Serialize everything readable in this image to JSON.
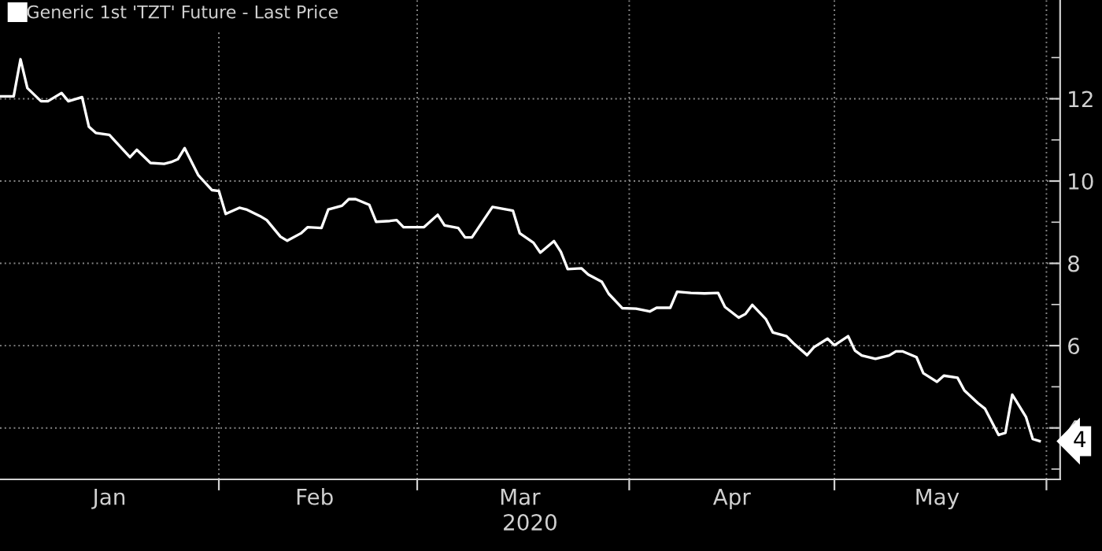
{
  "chart_data": {
    "type": "line",
    "xlabel": "2020",
    "x": [
      "2019-12-31",
      "2020-01-02",
      "2020-01-03",
      "2020-01-04",
      "2020-01-06",
      "2020-01-07",
      "2020-01-09",
      "2020-01-10",
      "2020-01-12",
      "2020-01-13",
      "2020-01-14",
      "2020-01-16",
      "2020-01-17",
      "2020-01-19",
      "2020-01-20",
      "2020-01-22",
      "2020-01-24",
      "2020-01-25",
      "2020-01-26",
      "2020-01-27",
      "2020-01-29",
      "2020-01-31",
      "2020-02-01",
      "2020-02-02",
      "2020-02-04",
      "2020-02-05",
      "2020-02-07",
      "2020-02-08",
      "2020-02-10",
      "2020-02-11",
      "2020-02-13",
      "2020-02-14",
      "2020-02-16",
      "2020-02-17",
      "2020-02-19",
      "2020-02-20",
      "2020-02-21",
      "2020-02-23",
      "2020-02-24",
      "2020-02-26",
      "2020-02-27",
      "2020-02-28",
      "2020-03-02",
      "2020-03-04",
      "2020-03-05",
      "2020-03-07",
      "2020-03-08",
      "2020-03-09",
      "2020-03-12",
      "2020-03-15",
      "2020-03-16",
      "2020-03-18",
      "2020-03-19",
      "2020-03-21",
      "2020-03-22",
      "2020-03-23",
      "2020-03-25",
      "2020-03-26",
      "2020-03-28",
      "2020-03-29",
      "2020-03-31",
      "2020-04-02",
      "2020-04-04",
      "2020-04-05",
      "2020-04-07",
      "2020-04-08",
      "2020-04-10",
      "2020-04-12",
      "2020-04-14",
      "2020-04-15",
      "2020-04-17",
      "2020-04-18",
      "2020-04-19",
      "2020-04-21",
      "2020-04-22",
      "2020-04-24",
      "2020-04-25",
      "2020-04-27",
      "2020-04-28",
      "2020-04-30",
      "2020-05-01",
      "2020-05-03",
      "2020-05-04",
      "2020-05-05",
      "2020-05-07",
      "2020-05-09",
      "2020-05-10",
      "2020-05-11",
      "2020-05-13",
      "2020-05-14",
      "2020-05-16",
      "2020-05-17",
      "2020-05-19",
      "2020-05-20",
      "2020-05-22",
      "2020-05-23",
      "2020-05-25",
      "2020-05-26",
      "2020-05-27",
      "2020-05-29",
      "2020-05-30",
      "2020-05-31"
    ],
    "series": [
      {
        "name": "Generic 1st 'TZT' Future - Last Price",
        "color": "#ffffff",
        "values": [
          12.06,
          12.06,
          12.96,
          12.26,
          11.94,
          11.94,
          12.14,
          11.94,
          12.04,
          11.32,
          11.17,
          11.12,
          10.94,
          10.58,
          10.76,
          10.44,
          10.42,
          10.46,
          10.53,
          10.8,
          10.14,
          9.78,
          9.76,
          9.2,
          9.35,
          9.31,
          9.15,
          9.05,
          8.65,
          8.55,
          8.73,
          8.88,
          8.86,
          9.31,
          9.4,
          9.56,
          9.56,
          9.42,
          9.01,
          9.03,
          9.05,
          8.88,
          8.88,
          9.18,
          8.92,
          8.86,
          8.63,
          8.63,
          9.37,
          9.28,
          8.73,
          8.5,
          8.26,
          8.54,
          8.28,
          7.86,
          7.88,
          7.73,
          7.55,
          7.26,
          6.91,
          6.9,
          6.83,
          6.92,
          6.92,
          7.31,
          7.28,
          7.27,
          7.28,
          6.94,
          6.68,
          6.77,
          6.99,
          6.64,
          6.32,
          6.23,
          6.06,
          5.77,
          5.96,
          6.17,
          6.01,
          6.23,
          5.88,
          5.76,
          5.68,
          5.76,
          5.86,
          5.86,
          5.72,
          5.33,
          5.12,
          5.27,
          5.22,
          4.91,
          4.6,
          4.47,
          3.83,
          3.88,
          4.81,
          4.27,
          3.73,
          3.68
        ]
      }
    ],
    "xlim": [
      "2019-12-31",
      "2020-06-03"
    ],
    "xticks": [
      {
        "value": "2020-02-01",
        "label": null
      },
      {
        "value": "2020-03-01",
        "label": null
      },
      {
        "value": "2020-04-01",
        "label": null
      },
      {
        "value": "2020-05-01",
        "label": null
      },
      {
        "value": "2020-06-01",
        "label": null
      },
      {
        "value": "2020-01-16",
        "label": "Jan"
      },
      {
        "value": "2020-02-15",
        "label": "Feb"
      },
      {
        "value": "2020-03-16",
        "label": "Mar"
      },
      {
        "value": "2020-04-16",
        "label": "Apr"
      },
      {
        "value": "2020-05-16",
        "label": "May"
      }
    ],
    "ylim": [
      2.75,
      14.4
    ],
    "yticks": [
      {
        "value": 3,
        "label": null
      },
      4,
      {
        "value": 5,
        "label": null
      },
      6,
      {
        "value": 7,
        "label": null
      },
      8,
      {
        "value": 9,
        "label": null
      },
      10,
      {
        "value": 11,
        "label": null
      },
      12,
      {
        "value": 13,
        "label": null
      }
    ],
    "annotations": [
      {
        "text": "4",
        "x": "2020-05-31",
        "y": 3.68
      }
    ],
    "grid": true,
    "legend": "top left",
    "marker": "none",
    "line_style": "solid"
  }
}
